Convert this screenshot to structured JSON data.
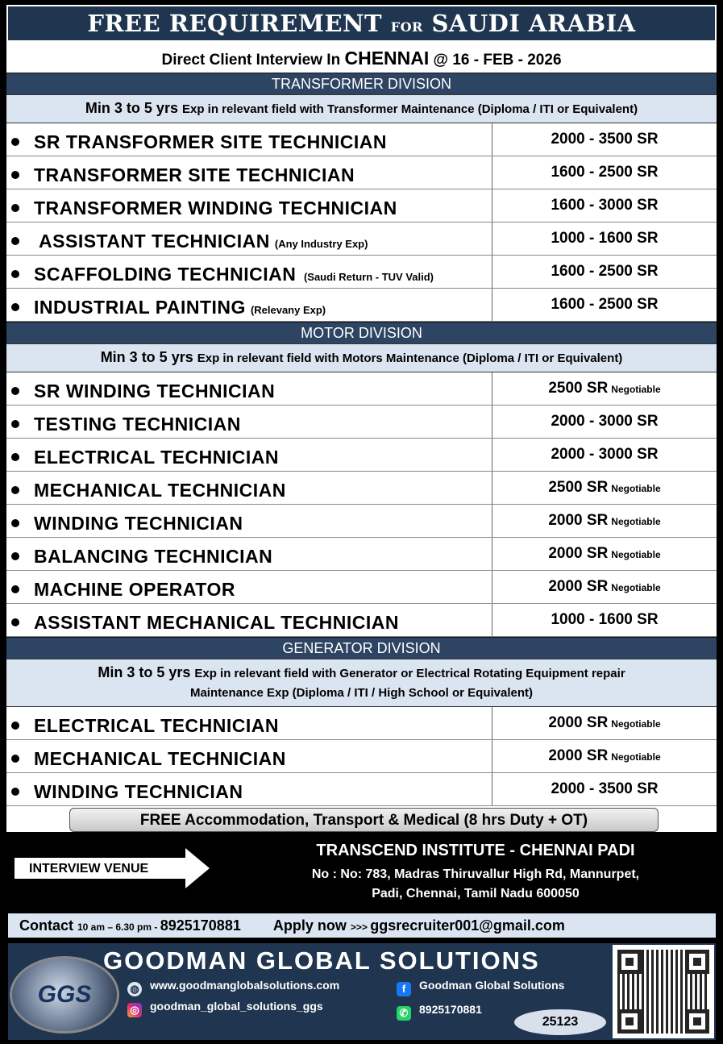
{
  "header": {
    "title_a": "FREE REQUIREMENT ",
    "title_for": "FOR",
    "title_b": " SAUDI ARABIA"
  },
  "subheader": {
    "prefix": "Direct Client Interview In ",
    "city": "CHENNAI",
    "suffix": " @  16 - FEB - 2026"
  },
  "divisions": [
    {
      "name": "TRANSFORMER DIVISION",
      "req_big": "Min 3 to 5 yrs ",
      "req": "Exp in relevant field with Transformer Maintenance (Diploma / ITI or Equivalent)",
      "req2": "",
      "jobs": [
        {
          "title": "SR TRANSFORMER SITE TECHNICIAN",
          "note": "",
          "salary": "2000 - 3500 SR",
          "salary_note": ""
        },
        {
          "title": "TRANSFORMER SITE TECHNICIAN",
          "note": "",
          "salary": "1600 - 2500 SR",
          "salary_note": ""
        },
        {
          "title": "TRANSFORMER WINDING TECHNICIAN",
          "note": "",
          "salary": "1600 - 3000 SR",
          "salary_note": ""
        },
        {
          "title": " ASSISTANT TECHNICIAN",
          "note": "(Any Industry Exp)",
          "salary": "1000 - 1600 SR",
          "salary_note": ""
        },
        {
          "title": "SCAFFOLDING TECHNICIAN",
          "note": " (Saudi Return - TUV Valid)",
          "salary": "1600 - 2500 SR",
          "salary_note": ""
        },
        {
          "title": "INDUSTRIAL PAINTING",
          "note": "(Relevany Exp)",
          "salary": "1600 - 2500 SR",
          "salary_note": ""
        }
      ]
    },
    {
      "name": "MOTOR  DIVISION",
      "req_big": "Min 3 to 5 yrs ",
      "req": "Exp in relevant field with Motors Maintenance (Diploma / ITI or Equivalent)",
      "req2": "",
      "jobs": [
        {
          "title": "SR WINDING TECHNICIAN",
          "note": "",
          "salary": "2500 SR",
          "salary_note": "Negotiable"
        },
        {
          "title": "TESTING TECHNICIAN",
          "note": "",
          "salary": "2000 - 3000 SR",
          "salary_note": ""
        },
        {
          "title": "ELECTRICAL TECHNICIAN",
          "note": "",
          "salary": "2000 - 3000 SR",
          "salary_note": ""
        },
        {
          "title": "MECHANICAL TECHNICIAN",
          "note": "",
          "salary": "2500 SR",
          "salary_note": "Negotiable"
        },
        {
          "title": "WINDING TECHNICIAN",
          "note": "",
          "salary": "2000 SR",
          "salary_note": "Negotiable"
        },
        {
          "title": "BALANCING TECHNICIAN",
          "note": "",
          "salary": "2000 SR",
          "salary_note": "Negotiable"
        },
        {
          "title": "MACHINE OPERATOR",
          "note": "",
          "salary": "2000 SR",
          "salary_note": "Negotiable"
        },
        {
          "title": "ASSISTANT MECHANICAL TECHNICIAN",
          "note": "",
          "salary": "1000 - 1600 SR",
          "salary_note": ""
        }
      ]
    },
    {
      "name": "GENERATOR   DIVISION",
      "req_big": "Min 3 to 5 yrs ",
      "req": "Exp in relevant field with Generator or Electrical Rotating Equipment repair",
      "req2": "Maintenance Exp  (Diploma / ITI / High School or Equivalent)",
      "jobs": [
        {
          "title": "ELECTRICAL TECHNICIAN",
          "note": "",
          "salary": "2000 SR",
          "salary_note": "Negotiable"
        },
        {
          "title": "MECHANICAL TECHNICIAN",
          "note": "",
          "salary": "2000 SR",
          "salary_note": "Negotiable"
        },
        {
          "title": "WINDING TECHNICIAN",
          "note": "",
          "salary": "2000 - 3500 SR",
          "salary_note": ""
        }
      ]
    }
  ],
  "benefits": "FREE Accommodation, Transport & Medical (8 hrs Duty + OT)",
  "venue": {
    "label": "INTERVIEW VENUE",
    "name": "TRANSCEND INSTITUTE - CHENNAI PADI",
    "address1": "No : No: 783, Madras Thiruvallur High Rd, Mannurpet,",
    "address2": "Padi, Chennai, Tamil Nadu 600050"
  },
  "contact": {
    "label": "Contact ",
    "hours": "10 am – 6.30 pm - ",
    "phone": "8925170881",
    "apply": "Apply now ",
    "arrows": ">>> ",
    "email": "ggsrecruiter001@gmail.com"
  },
  "footer": {
    "brand": "GOODMAN GLOBAL SOLUTIONS",
    "logo": "GGS",
    "website": "www.goodmanglobalsolutions.com",
    "facebook": "Goodman Global Solutions",
    "instagram": "goodman_global_solutions_ggs",
    "whatsapp": "8925170881",
    "code": "25123"
  },
  "icons": {
    "website": "globe-icon",
    "facebook": "facebook-icon",
    "instagram": "instagram-icon",
    "whatsapp": "whatsapp-icon"
  }
}
